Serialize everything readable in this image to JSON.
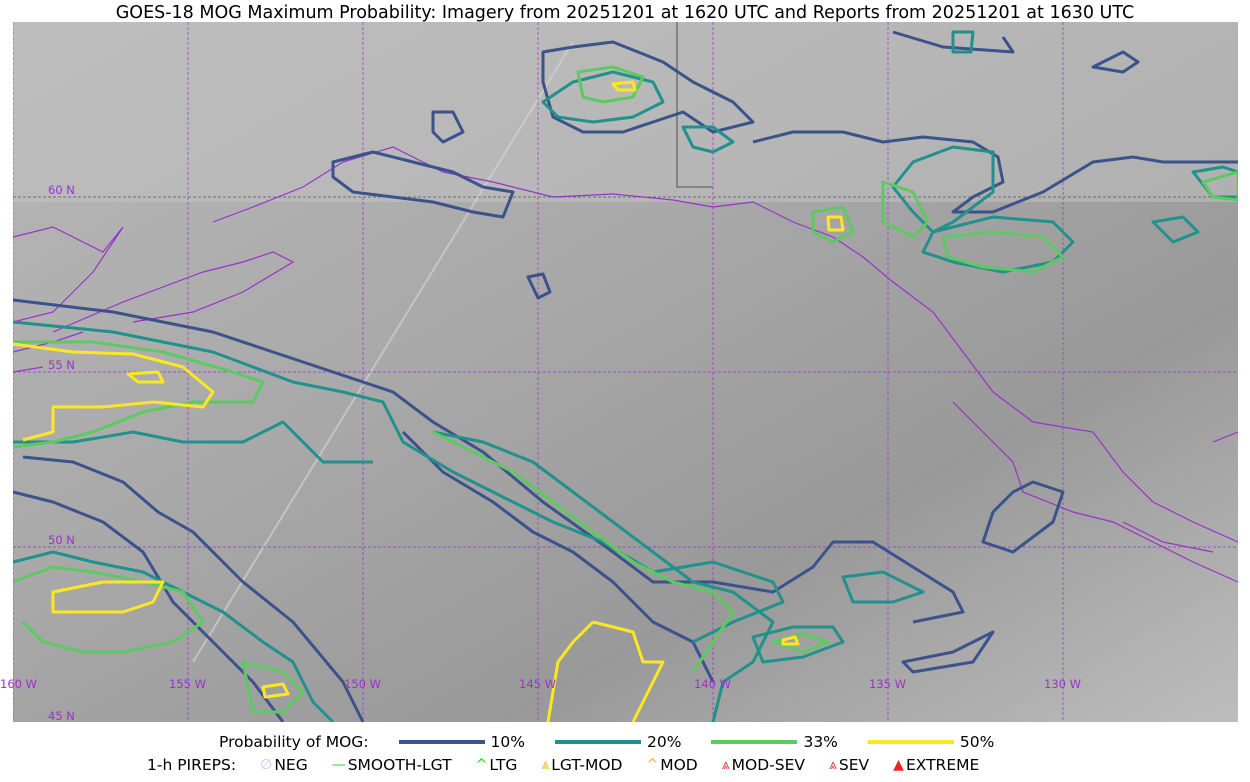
{
  "title": "GOES-18 MOG Maximum Probability: Imagery from 20251201 at 1620 UTC and Reports from 20251201 at 1630 UTC",
  "map": {
    "lat_labels": [
      "60 N",
      "55 N",
      "50 N",
      "45 N"
    ],
    "lon_labels": [
      "160 W",
      "155 W",
      "150 W",
      "145 W",
      "140 W",
      "135 W",
      "130 W"
    ],
    "colors": {
      "grid": "#9932cc",
      "coast": "#9932cc",
      "p10": "#3b528b",
      "p20": "#21918c",
      "p33": "#5ec962",
      "p50": "#fde725"
    }
  },
  "legend": {
    "probability_label": "Probability of MOG:",
    "probability_levels": [
      {
        "label": "10%",
        "color": "#3b528b"
      },
      {
        "label": "20%",
        "color": "#21918c"
      },
      {
        "label": "33%",
        "color": "#5ec962"
      },
      {
        "label": "50%",
        "color": "#fde725"
      }
    ],
    "pireps_label": "1-h PIREPS:",
    "pireps": [
      {
        "label": "NEG",
        "icon": "neg-icon",
        "symbol": "∅",
        "color": "#c8c8f0"
      },
      {
        "label": "SMOOTH-LGT",
        "icon": "smooth-lgt-icon",
        "symbol": "—",
        "color": "#22dd22"
      },
      {
        "label": "LTG",
        "icon": "ltg-icon",
        "symbol": "^",
        "color": "#00ee00"
      },
      {
        "label": "LGT-MOD",
        "icon": "lgt-mod-icon",
        "symbol": "⩓",
        "color": "#f5b21f"
      },
      {
        "label": "MOD",
        "icon": "mod-icon",
        "symbol": "^",
        "color": "#f5b21f"
      },
      {
        "label": "MOD-SEV",
        "icon": "mod-sev-icon",
        "symbol": "⩓",
        "color": "#ee3333"
      },
      {
        "label": "SEV",
        "icon": "sev-icon",
        "symbol": "⩓",
        "color": "#ee3333"
      },
      {
        "label": "EXTREME",
        "icon": "extreme-icon",
        "symbol": "▲",
        "color": "#ee2222"
      }
    ]
  }
}
